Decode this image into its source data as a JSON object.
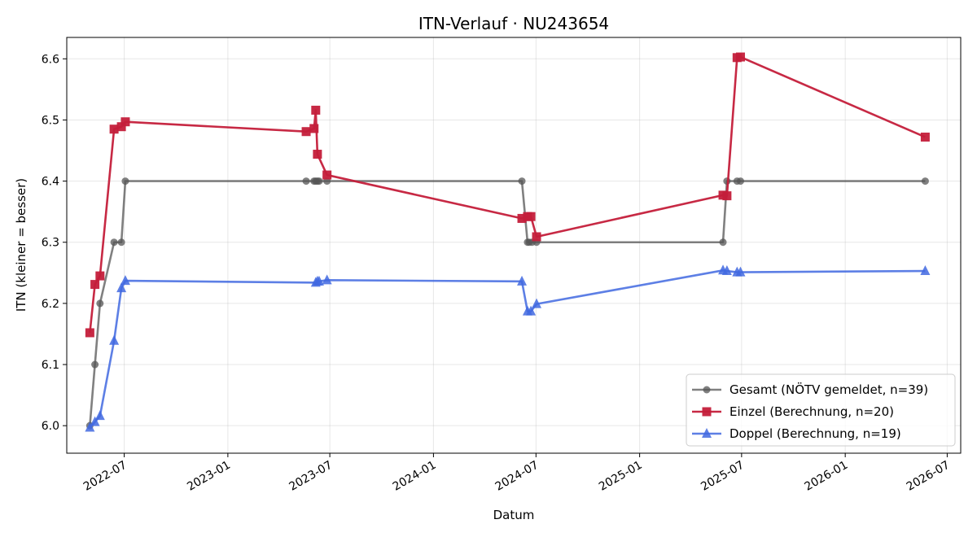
{
  "chart_data": {
    "type": "line",
    "title": "ITN-Verlauf · NU243654",
    "xlabel": "Datum",
    "ylabel": "ITN  (kleiner = besser)",
    "xlim": [
      "2022-03-21",
      "2026-07-25"
    ],
    "ylim": [
      5.955,
      6.635
    ],
    "x_ticks": [
      "2022-07",
      "2023-01",
      "2023-07",
      "2024-01",
      "2024-07",
      "2025-01",
      "2025-07",
      "2026-01",
      "2026-07"
    ],
    "y_ticks": [
      6.0,
      6.1,
      6.2,
      6.3,
      6.4,
      6.5,
      6.6
    ],
    "y_tick_labels": [
      "6.0",
      "6.1",
      "6.2",
      "6.3",
      "6.4",
      "6.5",
      "6.6"
    ],
    "grid": true,
    "legend_position": "lower-right",
    "series": [
      {
        "name": "Gesamt (NÖTV gemeldet, n=39)",
        "color": "#555555",
        "opacity": 0.75,
        "marker": "circle",
        "points": [
          {
            "x": "2022-05-01",
            "y": 6.0
          },
          {
            "x": "2022-05-10",
            "y": 6.1
          },
          {
            "x": "2022-05-19",
            "y": 6.2
          },
          {
            "x": "2022-06-13",
            "y": 6.3
          },
          {
            "x": "2022-06-26",
            "y": 6.3
          },
          {
            "x": "2022-07-03",
            "y": 6.4
          },
          {
            "x": "2023-05-20",
            "y": 6.4
          },
          {
            "x": "2023-06-03",
            "y": 6.4
          },
          {
            "x": "2023-06-06",
            "y": 6.4
          },
          {
            "x": "2023-06-09",
            "y": 6.4
          },
          {
            "x": "2023-06-12",
            "y": 6.4
          },
          {
            "x": "2023-06-26",
            "y": 6.4
          },
          {
            "x": "2024-06-06",
            "y": 6.4
          },
          {
            "x": "2024-06-16",
            "y": 6.3
          },
          {
            "x": "2024-06-19",
            "y": 6.3
          },
          {
            "x": "2024-06-24",
            "y": 6.3
          },
          {
            "x": "2024-07-02",
            "y": 6.3
          },
          {
            "x": "2025-05-29",
            "y": 6.3
          },
          {
            "x": "2025-06-05",
            "y": 6.4
          },
          {
            "x": "2025-06-23",
            "y": 6.4
          },
          {
            "x": "2025-06-29",
            "y": 6.4
          },
          {
            "x": "2026-05-23",
            "y": 6.4
          }
        ]
      },
      {
        "name": "Einzel (Berechnung, n=20)",
        "color": "#C41E3A",
        "opacity": 0.95,
        "marker": "square",
        "points": [
          {
            "x": "2022-05-01",
            "y": 6.152
          },
          {
            "x": "2022-05-10",
            "y": 6.231
          },
          {
            "x": "2022-05-19",
            "y": 6.245
          },
          {
            "x": "2022-06-13",
            "y": 6.485
          },
          {
            "x": "2022-06-26",
            "y": 6.489
          },
          {
            "x": "2022-07-03",
            "y": 6.497
          },
          {
            "x": "2023-05-20",
            "y": 6.481
          },
          {
            "x": "2023-06-03",
            "y": 6.486
          },
          {
            "x": "2023-06-06",
            "y": 6.516
          },
          {
            "x": "2023-06-09",
            "y": 6.444
          },
          {
            "x": "2023-06-26",
            "y": 6.41
          },
          {
            "x": "2024-06-06",
            "y": 6.339
          },
          {
            "x": "2024-06-16",
            "y": 6.342
          },
          {
            "x": "2024-06-22",
            "y": 6.342
          },
          {
            "x": "2024-07-02",
            "y": 6.309
          },
          {
            "x": "2025-05-29",
            "y": 6.377
          },
          {
            "x": "2025-06-05",
            "y": 6.376
          },
          {
            "x": "2025-06-23",
            "y": 6.602
          },
          {
            "x": "2025-06-29",
            "y": 6.603
          },
          {
            "x": "2026-05-23",
            "y": 6.472
          }
        ]
      },
      {
        "name": "Doppel (Berechnung, n=19)",
        "color": "#4169E1",
        "opacity": 0.85,
        "marker": "triangle",
        "points": [
          {
            "x": "2022-05-01",
            "y": 5.997
          },
          {
            "x": "2022-05-10",
            "y": 6.006
          },
          {
            "x": "2022-05-19",
            "y": 6.016
          },
          {
            "x": "2022-06-13",
            "y": 6.139
          },
          {
            "x": "2022-06-26",
            "y": 6.225
          },
          {
            "x": "2022-07-03",
            "y": 6.237
          },
          {
            "x": "2023-06-06",
            "y": 6.234
          },
          {
            "x": "2023-06-09",
            "y": 6.236
          },
          {
            "x": "2023-06-12",
            "y": 6.236
          },
          {
            "x": "2023-06-26",
            "y": 6.238
          },
          {
            "x": "2024-06-06",
            "y": 6.236
          },
          {
            "x": "2024-06-16",
            "y": 6.187
          },
          {
            "x": "2024-06-22",
            "y": 6.187
          },
          {
            "x": "2024-07-02",
            "y": 6.199
          },
          {
            "x": "2025-05-29",
            "y": 6.254
          },
          {
            "x": "2025-06-05",
            "y": 6.253
          },
          {
            "x": "2025-06-23",
            "y": 6.251
          },
          {
            "x": "2025-06-29",
            "y": 6.251
          },
          {
            "x": "2026-05-23",
            "y": 6.253
          }
        ]
      }
    ]
  }
}
